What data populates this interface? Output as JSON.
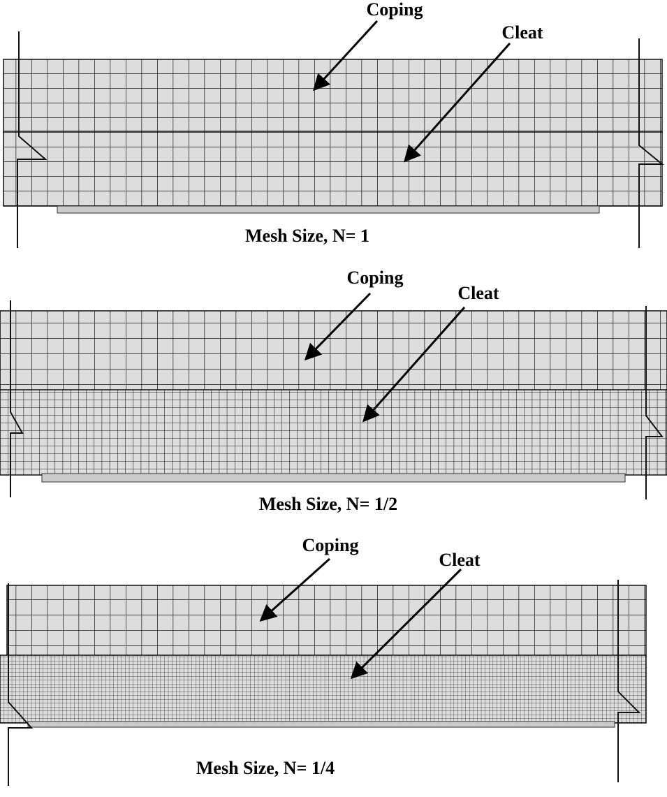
{
  "panels": [
    {
      "coping": "Coping",
      "cleat": "Cleat",
      "caption": "Mesh Size, N= 1"
    },
    {
      "coping": "Coping",
      "cleat": "Cleat",
      "caption": "Mesh Size, N= 1/2"
    },
    {
      "coping": "Coping",
      "cleat": "Cleat",
      "caption": "Mesh Size, N= 1/4"
    }
  ]
}
